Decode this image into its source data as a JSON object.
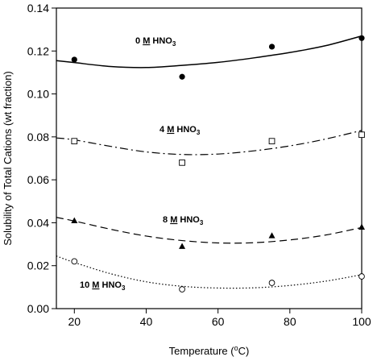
{
  "chart_data": {
    "type": "scatter",
    "title": "",
    "xlabel": "Temperature (°C)",
    "ylabel": "Solubility of Total Cations (wt fraction)",
    "xlim": [
      15,
      100
    ],
    "ylim": [
      0,
      0.14
    ],
    "x_ticks": [
      20,
      40,
      60,
      80,
      100
    ],
    "y_ticks": [
      0.0,
      0.02,
      0.04,
      0.06,
      0.08,
      0.1,
      0.12,
      0.14
    ],
    "x_tick_labels": [
      "20",
      "40",
      "60",
      "80",
      "100"
    ],
    "y_tick_labels": [
      "0.00",
      "0.02",
      "0.04",
      "0.06",
      "0.08",
      "0.10",
      "0.12",
      "0.14"
    ],
    "grid": false,
    "legend": "none",
    "series": [
      {
        "label_parts": [
          "0 ",
          "M",
          " HNO",
          "3"
        ],
        "marker": "filled-circle",
        "line_style": "solid",
        "x": [
          20,
          50,
          75,
          100
        ],
        "y": [
          0.116,
          0.108,
          0.122,
          0.126
        ],
        "fit_x": [
          15,
          20,
          30,
          40,
          50,
          60,
          70,
          80,
          90,
          100
        ],
        "fit_y": [
          0.1155,
          0.1146,
          0.1128,
          0.1123,
          0.1133,
          0.1147,
          0.1168,
          0.1193,
          0.1225,
          0.127
        ]
      },
      {
        "label_parts": [
          "4 ",
          "M",
          "  HNO",
          "3"
        ],
        "marker": "open-square",
        "line_style": "dash-dot",
        "x": [
          20,
          50,
          75,
          100
        ],
        "y": [
          0.078,
          0.068,
          0.078,
          0.081
        ],
        "fit_x": [
          15,
          20,
          30,
          40,
          50,
          60,
          70,
          80,
          90,
          100
        ],
        "fit_y": [
          0.0795,
          0.0786,
          0.0756,
          0.073,
          0.0718,
          0.072,
          0.0735,
          0.0758,
          0.079,
          0.083
        ]
      },
      {
        "label_parts": [
          "8 ",
          "M",
          "  HNO",
          "3"
        ],
        "marker": "filled-triangle",
        "line_style": "dashed",
        "x": [
          20,
          50,
          75,
          100
        ],
        "y": [
          0.041,
          0.029,
          0.034,
          0.038
        ],
        "fit_x": [
          15,
          20,
          30,
          40,
          50,
          60,
          70,
          80,
          90,
          100
        ],
        "fit_y": [
          0.0425,
          0.0408,
          0.037,
          0.0338,
          0.0317,
          0.0306,
          0.0307,
          0.032,
          0.0343,
          0.0378
        ]
      },
      {
        "label_parts": [
          "10 ",
          "M",
          " HNO",
          "3"
        ],
        "marker": "open-circle",
        "line_style": "dotted",
        "x": [
          20,
          50,
          75,
          100
        ],
        "y": [
          0.022,
          0.009,
          0.012,
          0.015
        ],
        "fit_x": [
          15,
          20,
          30,
          40,
          50,
          60,
          70,
          80,
          90,
          100
        ],
        "fit_y": [
          0.0245,
          0.0215,
          0.0163,
          0.0125,
          0.0104,
          0.0096,
          0.0097,
          0.0108,
          0.0128,
          0.0158
        ]
      }
    ]
  }
}
